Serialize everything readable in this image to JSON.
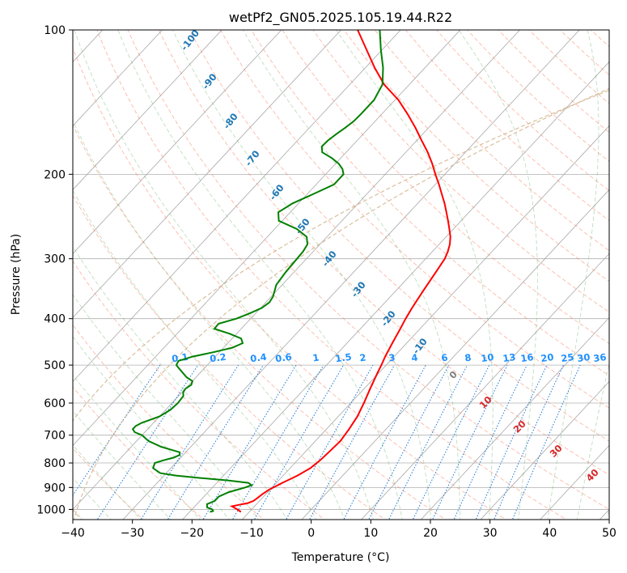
{
  "chart_data": {
    "type": "line",
    "title": "wetPf2_GN05.2025.105.19.44.R22",
    "xlabel": "Temperature (°C)",
    "ylabel": "Pressure (hPa)",
    "xlim": [
      -40,
      50
    ],
    "ylim": [
      1050,
      100
    ],
    "yscale": "log",
    "skew_deg_per_decade": 75,
    "grid": true,
    "x_ticks": [
      "−40",
      "−30",
      "−20",
      "−10",
      "0",
      "10",
      "20",
      "30",
      "40",
      "50"
    ],
    "y_ticks": [
      "100",
      "200",
      "300",
      "400",
      "500",
      "600",
      "700",
      "800",
      "900",
      "1000"
    ],
    "dry_adiabat_labels": [
      "-100",
      "-90",
      "-80",
      "-70",
      "-60",
      "-50",
      "-40",
      "-30",
      "-20",
      "-10"
    ],
    "mixing_ratio_labels": [
      "0.1",
      "0.2",
      "0.4",
      "0.6",
      "1",
      "1.5",
      "2",
      "3",
      "4",
      "6",
      "8",
      "10",
      "13",
      "16",
      "20",
      "25",
      "30",
      "36"
    ],
    "moist_adiabat_labels": [
      "0",
      "10",
      "20",
      "30",
      "40"
    ],
    "colors": {
      "temperature": "#ff0000",
      "dewpoint": "#008000",
      "dry_adiabat_label": "#1f77b4",
      "mixing_ratio_label": "#1e90ff",
      "moist_adiabat_label": "#d62728"
    },
    "series": [
      {
        "key": "temperature",
        "pressure": [
          1012,
          1000,
          985,
          978,
          970,
          960,
          945,
          930,
          910,
          880,
          850,
          820,
          790,
          760,
          720,
          680,
          640,
          600,
          560,
          520,
          500,
          480,
          450,
          420,
          400,
          380,
          350,
          320,
          300,
          290,
          280,
          270,
          260,
          250,
          240,
          230,
          220,
          210,
          200,
          190,
          180,
          170,
          160,
          150,
          140,
          130,
          120,
          110,
          100
        ],
        "temperature": [
          -11.4,
          -12.4,
          -13.8,
          -12.8,
          -11.6,
          -11.0,
          -10.8,
          -10.6,
          -10.2,
          -9.0,
          -7.6,
          -6.6,
          -6.2,
          -6.0,
          -5.8,
          -6.2,
          -6.8,
          -7.8,
          -9.0,
          -10.2,
          -10.8,
          -11.5,
          -12.4,
          -13.3,
          -14.0,
          -14.6,
          -15.4,
          -16.2,
          -16.8,
          -17.4,
          -18.2,
          -19.3,
          -20.7,
          -22.2,
          -23.8,
          -25.5,
          -27.4,
          -29.4,
          -31.6,
          -33.8,
          -36.3,
          -39.2,
          -42.2,
          -45.6,
          -49.4,
          -54.2,
          -58.4,
          -62.6,
          -67.2
        ]
      },
      {
        "key": "dewpoint",
        "pressure": [
          1012,
          1008,
          1000,
          990,
          975,
          960,
          940,
          920,
          900,
          890,
          880,
          870,
          860,
          850,
          840,
          820,
          800,
          790,
          780,
          770,
          760,
          750,
          740,
          720,
          700,
          690,
          680,
          670,
          660,
          650,
          640,
          620,
          600,
          580,
          570,
          560,
          550,
          540,
          530,
          510,
          500,
          490,
          480,
          470,
          460,
          450,
          440,
          430,
          420,
          410,
          400,
          390,
          380,
          370,
          360,
          340,
          320,
          300,
          290,
          280,
          270,
          260,
          250,
          240,
          230,
          220,
          210,
          200,
          195,
          190,
          185,
          180,
          175,
          170,
          165,
          160,
          155,
          150,
          140,
          130,
          120,
          110,
          100
        ],
        "temperature": [
          -16.6,
          -16.2,
          -16.6,
          -17.8,
          -18.3,
          -17.5,
          -17.5,
          -16.5,
          -14.5,
          -13.8,
          -14.7,
          -18.5,
          -23.5,
          -28.0,
          -31.0,
          -33.0,
          -33.5,
          -32.5,
          -31.2,
          -30.6,
          -31.0,
          -33.0,
          -35.0,
          -38.0,
          -40.0,
          -41.7,
          -42.5,
          -42.5,
          -42.0,
          -41.0,
          -40.0,
          -39.2,
          -39.0,
          -39.2,
          -39.8,
          -40.0,
          -39.6,
          -40.0,
          -41.6,
          -44.0,
          -45.2,
          -45.5,
          -43.8,
          -41.0,
          -38.5,
          -37.5,
          -38.5,
          -41.2,
          -44.5,
          -44.6,
          -42.4,
          -41.0,
          -39.8,
          -39.4,
          -39.7,
          -41.0,
          -41.4,
          -41.6,
          -41.7,
          -42.1,
          -43.4,
          -46.3,
          -50.6,
          -52.0,
          -51.0,
          -49.0,
          -47.0,
          -47.0,
          -48.0,
          -49.5,
          -51.5,
          -54.0,
          -55.0,
          -54.9,
          -54.5,
          -54.0,
          -53.6,
          -53.5,
          -53.5,
          -54.5,
          -57.0,
          -60.2,
          -63.5
        ]
      }
    ]
  }
}
